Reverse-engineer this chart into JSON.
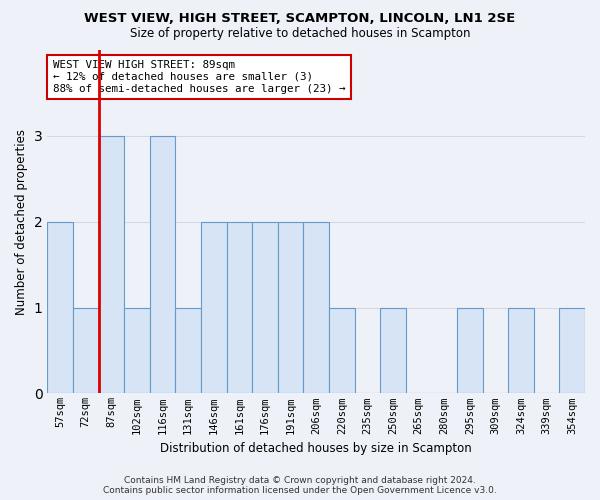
{
  "title": "WEST VIEW, HIGH STREET, SCAMPTON, LINCOLN, LN1 2SE",
  "subtitle": "Size of property relative to detached houses in Scampton",
  "xlabel": "Distribution of detached houses by size in Scampton",
  "ylabel": "Number of detached properties",
  "categories": [
    "57sqm",
    "72sqm",
    "87sqm",
    "102sqm",
    "116sqm",
    "131sqm",
    "146sqm",
    "161sqm",
    "176sqm",
    "191sqm",
    "206sqm",
    "220sqm",
    "235sqm",
    "250sqm",
    "265sqm",
    "280sqm",
    "295sqm",
    "309sqm",
    "324sqm",
    "339sqm",
    "354sqm"
  ],
  "values": [
    2,
    1,
    3,
    1,
    3,
    1,
    2,
    2,
    2,
    2,
    2,
    1,
    0,
    1,
    0,
    0,
    1,
    0,
    1,
    0,
    1
  ],
  "bar_color": "#d6e4f5",
  "bar_edge_color": "#6699cc",
  "highlight_index": 2,
  "highlight_line_color": "#dd0000",
  "ylim": [
    0,
    4
  ],
  "yticks": [
    0,
    1,
    2,
    3
  ],
  "annotation_text": "WEST VIEW HIGH STREET: 89sqm\n← 12% of detached houses are smaller (3)\n88% of semi-detached houses are larger (23) →",
  "annotation_box_color": "#ffffff",
  "annotation_box_edgecolor": "#cc0000",
  "footer_line1": "Contains HM Land Registry data © Crown copyright and database right 2024.",
  "footer_line2": "Contains public sector information licensed under the Open Government Licence v3.0.",
  "background_color": "#eef2f8",
  "grid_color": "#d0d8e8",
  "fig_width": 6.0,
  "fig_height": 5.0,
  "dpi": 100
}
